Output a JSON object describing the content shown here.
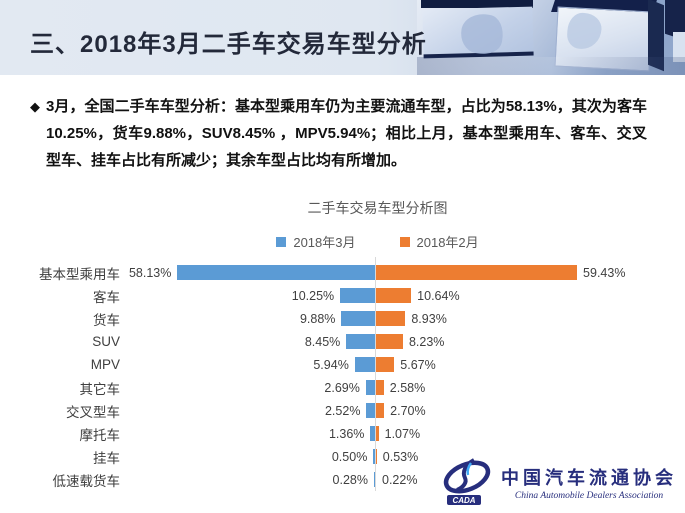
{
  "page": {
    "title": "三、2018年3月二手车交易车型分析"
  },
  "summary": {
    "bullet": "◆",
    "text": "3月，全国二手车车型分析：基本型乘用车仍为主要流通车型，占比为58.13%，其次为客车10.25%，货车9.88%，SUV8.45% ，MPV5.94%；相比上月，基本型乘用车、客车、交叉型车、挂车占比有所减少；其余车型占比均有所增加。"
  },
  "chart_data": {
    "type": "bar",
    "variant": "diverging-horizontal",
    "title": "二手车交易车型分析图",
    "categories": [
      "基本型乘用车",
      "客车",
      "货车",
      "SUV",
      "MPV",
      "其它车",
      "交叉型车",
      "摩托车",
      "挂车",
      "低速载货车"
    ],
    "series": [
      {
        "name": "2018年3月",
        "color": "#5B9BD5",
        "side": "left",
        "values": [
          58.13,
          10.25,
          9.88,
          8.45,
          5.94,
          2.69,
          2.52,
          1.36,
          0.5,
          0.28
        ],
        "labels": [
          "58.13%",
          "10.25%",
          "9.88%",
          "8.45%",
          "5.94%",
          "2.69%",
          "2.52%",
          "1.36%",
          "0.50%",
          "0.28%"
        ]
      },
      {
        "name": "2018年2月",
        "color": "#ED7D31",
        "side": "right",
        "values": [
          59.43,
          10.64,
          8.93,
          8.23,
          5.67,
          2.58,
          2.7,
          1.07,
          0.53,
          0.22
        ],
        "labels": [
          "59.43%",
          "10.64%",
          "8.93%",
          "8.23%",
          "5.67%",
          "2.58%",
          "2.70%",
          "1.07%",
          "0.53%",
          "0.22%"
        ]
      }
    ],
    "axis": {
      "center_axis": true,
      "max_percent_per_side": 60,
      "grid": false,
      "unit": "%"
    },
    "legend_position": "top-center"
  },
  "footer": {
    "logo_text": "CADA",
    "org_cn": "中国汽车流通协会",
    "org_en": "China Automobile Dealers Association"
  }
}
